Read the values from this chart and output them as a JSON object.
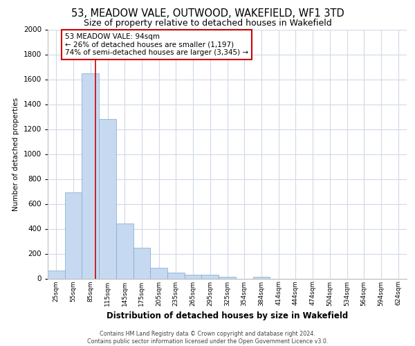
{
  "title": "53, MEADOW VALE, OUTWOOD, WAKEFIELD, WF1 3TD",
  "subtitle": "Size of property relative to detached houses in Wakefield",
  "xlabel": "Distribution of detached houses by size in Wakefield",
  "ylabel": "Number of detached properties",
  "bar_color": "#c6d9f0",
  "bar_edge_color": "#7aa8d2",
  "categories": [
    "25sqm",
    "55sqm",
    "85sqm",
    "115sqm",
    "145sqm",
    "175sqm",
    "205sqm",
    "235sqm",
    "265sqm",
    "295sqm",
    "325sqm",
    "354sqm",
    "384sqm",
    "414sqm",
    "444sqm",
    "474sqm",
    "504sqm",
    "534sqm",
    "564sqm",
    "594sqm",
    "624sqm"
  ],
  "values": [
    65,
    690,
    1650,
    1280,
    440,
    250,
    85,
    50,
    30,
    28,
    15,
    0,
    15,
    0,
    0,
    0,
    0,
    0,
    0,
    0,
    0
  ],
  "red_line_x": 2.3,
  "annotation_text": "53 MEADOW VALE: 94sqm\n← 26% of detached houses are smaller (1,197)\n74% of semi-detached houses are larger (3,345) →",
  "annotation_box_color": "#ffffff",
  "annotation_border_color": "#cc0000",
  "ylim": [
    0,
    2000
  ],
  "yticks": [
    0,
    200,
    400,
    600,
    800,
    1000,
    1200,
    1400,
    1600,
    1800,
    2000
  ],
  "footer_line1": "Contains HM Land Registry data © Crown copyright and database right 2024.",
  "footer_line2": "Contains public sector information licensed under the Open Government Licence v3.0.",
  "background_color": "#ffffff",
  "grid_color": "#d0d8e8"
}
